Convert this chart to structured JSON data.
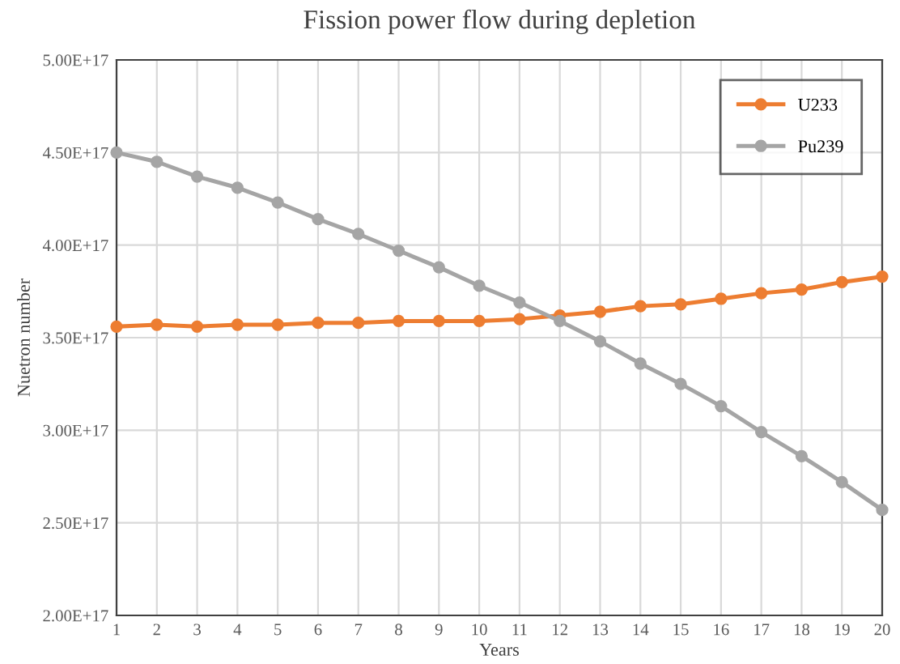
{
  "chart_data": {
    "type": "line",
    "title": "Fission power flow during depletion",
    "xlabel": "Years",
    "ylabel": "Nuetron number",
    "x": [
      1,
      2,
      3,
      4,
      5,
      6,
      7,
      8,
      9,
      10,
      11,
      12,
      13,
      14,
      15,
      16,
      17,
      18,
      19,
      20
    ],
    "series": [
      {
        "name": "U233",
        "color": "#ed7d31",
        "values": [
          3.56e+17,
          3.57e+17,
          3.56e+17,
          3.57e+17,
          3.57e+17,
          3.58e+17,
          3.58e+17,
          3.59e+17,
          3.59e+17,
          3.59e+17,
          3.6e+17,
          3.62e+17,
          3.64e+17,
          3.67e+17,
          3.68e+17,
          3.71e+17,
          3.74e+17,
          3.76e+17,
          3.8e+17,
          3.83e+17
        ]
      },
      {
        "name": "Pu239",
        "color": "#a5a5a5",
        "values": [
          4.5e+17,
          4.45e+17,
          4.37e+17,
          4.31e+17,
          4.23e+17,
          4.14e+17,
          4.06e+17,
          3.97e+17,
          3.88e+17,
          3.78e+17,
          3.69e+17,
          3.59e+17,
          3.48e+17,
          3.36e+17,
          3.25e+17,
          3.13e+17,
          2.99e+17,
          2.86e+17,
          2.72e+17,
          2.57e+17
        ]
      }
    ],
    "xlim": [
      1,
      20
    ],
    "xticks": [
      1,
      2,
      3,
      4,
      5,
      6,
      7,
      8,
      9,
      10,
      11,
      12,
      13,
      14,
      15,
      16,
      17,
      18,
      19,
      20
    ],
    "ylim": [
      2e+17,
      5e+17
    ],
    "yticks": [
      {
        "value": 2e+17,
        "label": "2.00E+17"
      },
      {
        "value": 2.5e+17,
        "label": "2.50E+17"
      },
      {
        "value": 3e+17,
        "label": "3.00E+17"
      },
      {
        "value": 3.5e+17,
        "label": "3.50E+17"
      },
      {
        "value": 4e+17,
        "label": "4.00E+17"
      },
      {
        "value": 4.5e+17,
        "label": "4.50E+17"
      },
      {
        "value": 5e+17,
        "label": "5.00E+17"
      }
    ],
    "grid": true,
    "legend": "top right",
    "marker": "circle",
    "line_style": "solid"
  }
}
